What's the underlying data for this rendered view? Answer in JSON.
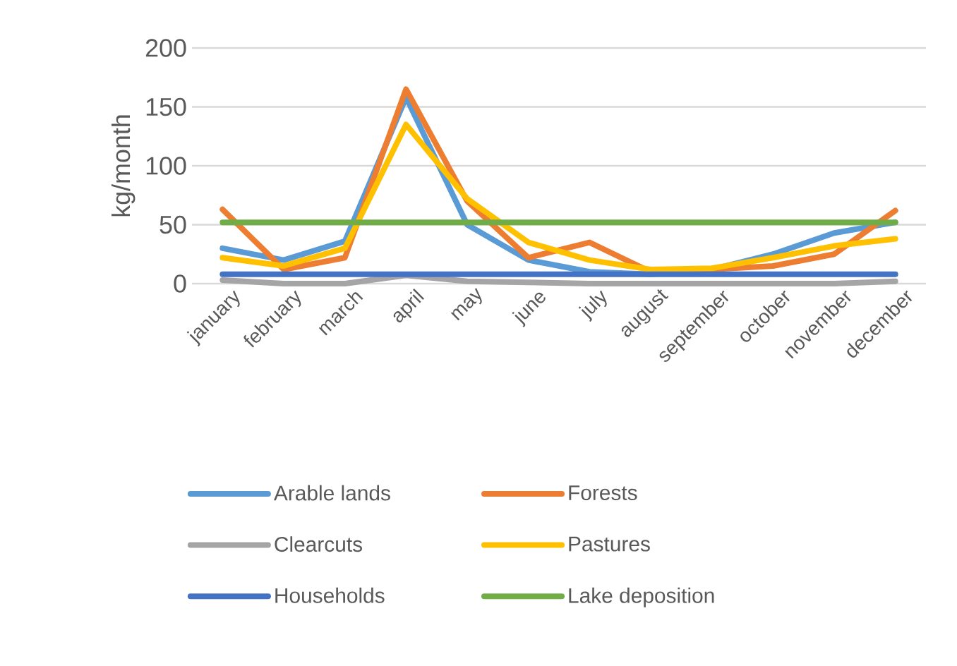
{
  "chart_data": {
    "type": "line",
    "ylabel": "kg/month",
    "categories": [
      "january",
      "february",
      "march",
      "april",
      "may",
      "june",
      "july",
      "august",
      "september",
      "october",
      "november",
      "december"
    ],
    "series": [
      {
        "name": "Arable lands",
        "color": "#5b9bd5",
        "values": [
          30,
          20,
          36,
          158,
          50,
          20,
          10,
          8,
          12,
          25,
          43,
          52
        ]
      },
      {
        "name": "Forests",
        "color": "#ed7d31",
        "values": [
          63,
          12,
          22,
          165,
          70,
          22,
          35,
          10,
          12,
          15,
          25,
          62
        ]
      },
      {
        "name": "Clearcuts",
        "color": "#a5a5a5",
        "values": [
          3,
          0,
          0,
          7,
          2,
          1,
          0,
          0,
          0,
          0,
          0,
          2
        ]
      },
      {
        "name": "Pastures",
        "color": "#ffc000",
        "values": [
          22,
          15,
          30,
          135,
          72,
          35,
          20,
          12,
          13,
          22,
          32,
          38
        ]
      },
      {
        "name": "Households",
        "color": "#4472c4",
        "values": [
          8,
          8,
          8,
          8,
          8,
          8,
          8,
          8,
          8,
          8,
          8,
          8
        ]
      },
      {
        "name": "Lake deposition",
        "color": "#70ad47",
        "values": [
          52,
          52,
          52,
          52,
          52,
          52,
          52,
          52,
          52,
          52,
          52,
          52
        ]
      }
    ],
    "ylim": [
      0,
      200
    ],
    "yticks": [
      0,
      50,
      100,
      150,
      200
    ],
    "grid": "y",
    "legend": "bottom",
    "line_style": "solid",
    "marker": "none"
  }
}
